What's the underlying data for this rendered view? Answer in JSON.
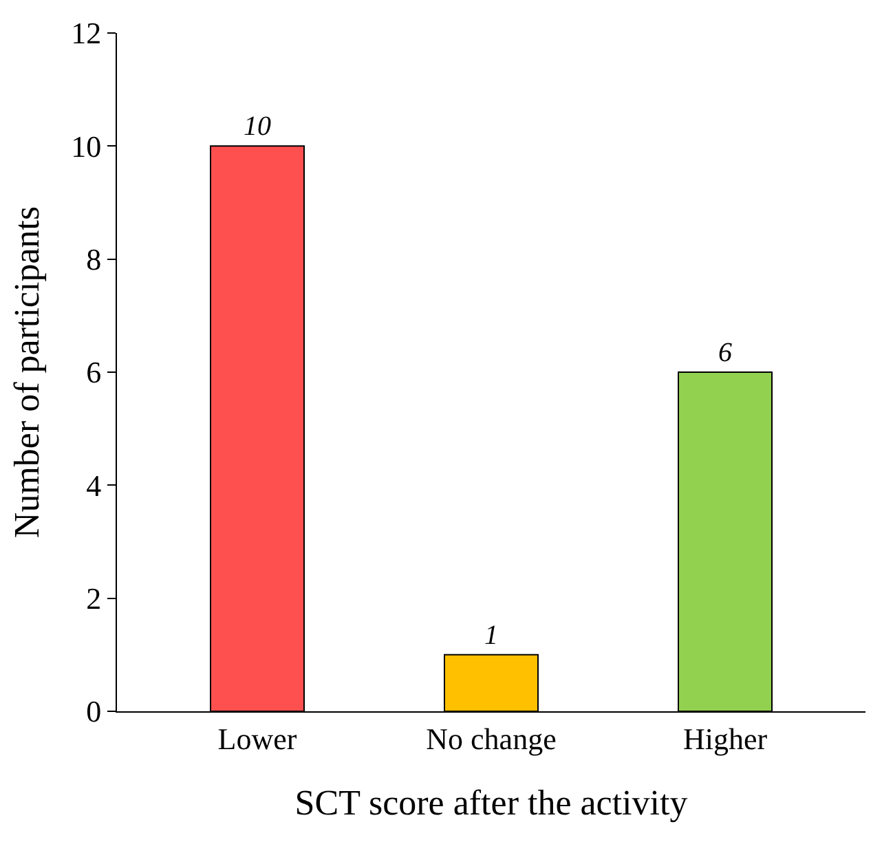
{
  "chart_data": {
    "type": "bar",
    "xlabel": "SCT score after the activity",
    "ylabel": "Number of participants",
    "categories": [
      "Lower",
      "No change",
      "Higher"
    ],
    "values": [
      10,
      1,
      6
    ],
    "colors": [
      "#ff5050",
      "#ffc000",
      "#92d050"
    ],
    "ylim": [
      0,
      12
    ],
    "yticks": [
      0,
      2,
      4,
      6,
      8,
      10,
      12
    ],
    "data_labels": true
  }
}
